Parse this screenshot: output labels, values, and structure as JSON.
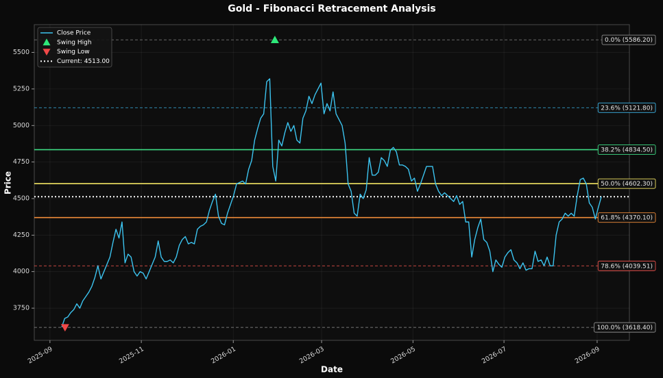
{
  "chart_data": {
    "type": "line",
    "title": "Gold - Fibonacci Retracement Analysis",
    "xlabel": "Date",
    "ylabel": "Price",
    "xlim": [
      -9.1,
      188.3
    ],
    "xticks": [
      {
        "value": -3.9,
        "label": "2025-09"
      },
      {
        "value": 26.4,
        "label": "2025-11"
      },
      {
        "value": 56.9,
        "label": "2026-01"
      },
      {
        "value": 86.2,
        "label": "2026-03"
      },
      {
        "value": 116.5,
        "label": "2026-05"
      },
      {
        "value": 146.7,
        "label": "2026-07"
      },
      {
        "value": 177.6,
        "label": "2026-09"
      }
    ],
    "ylim": [
      3530,
      5690
    ],
    "yticks": [
      3750,
      4000,
      4250,
      4500,
      4750,
      5000,
      5250,
      5500
    ],
    "grid": true,
    "legend": "upper left",
    "series": [
      {
        "name": "Close Price",
        "color": "#3cc4f0",
        "values": [
          3620,
          3680,
          3690,
          3720,
          3740,
          3780,
          3750,
          3800,
          3830,
          3860,
          3900,
          3960,
          4040,
          3950,
          4000,
          4050,
          4100,
          4200,
          4290,
          4230,
          4340,
          4060,
          4120,
          4100,
          4000,
          3970,
          4000,
          3990,
          3950,
          4000,
          4050,
          4100,
          4210,
          4100,
          4070,
          4070,
          4080,
          4060,
          4100,
          4180,
          4220,
          4240,
          4190,
          4200,
          4190,
          4290,
          4310,
          4320,
          4340,
          4420,
          4480,
          4530,
          4380,
          4330,
          4320,
          4400,
          4460,
          4520,
          4600,
          4610,
          4620,
          4600,
          4700,
          4760,
          4900,
          4980,
          5050,
          5080,
          5300,
          5320,
          4720,
          4620,
          4900,
          4860,
          4950,
          5020,
          4960,
          5000,
          4900,
          4880,
          5050,
          5100,
          5200,
          5150,
          5210,
          5250,
          5290,
          5080,
          5150,
          5100,
          5230,
          5080,
          5040,
          5000,
          4880,
          4600,
          4550,
          4400,
          4380,
          4530,
          4500,
          4560,
          4780,
          4660,
          4660,
          4680,
          4780,
          4760,
          4720,
          4830,
          4850,
          4820,
          4730,
          4730,
          4720,
          4700,
          4620,
          4640,
          4550,
          4600,
          4660,
          4720,
          4720,
          4720,
          4600,
          4550,
          4520,
          4540,
          4520,
          4500,
          4480,
          4520,
          4460,
          4480,
          4340,
          4340,
          4100,
          4220,
          4300,
          4360,
          4220,
          4200,
          4140,
          4000,
          4080,
          4050,
          4030,
          4100,
          4130,
          4150,
          4080,
          4060,
          4020,
          4060,
          4010,
          4020,
          4020,
          4140,
          4070,
          4080,
          4040,
          4100,
          4040,
          4040,
          4250,
          4340,
          4360,
          4400,
          4380,
          4400,
          4380,
          4520,
          4630,
          4640,
          4600,
          4470,
          4440,
          4360,
          4440,
          4513
        ]
      }
    ],
    "markers": [
      {
        "name": "Swing High",
        "shape": "triangle-up",
        "color": "#2ee87a",
        "x": 70.7,
        "value": 5586.2
      },
      {
        "name": "Swing Low",
        "shape": "triangle-down",
        "color": "#f04848",
        "x": 1.1,
        "value": 3618.4
      }
    ],
    "current": {
      "label": "Current: 4513.00",
      "value": 4513,
      "color": "#ffffff"
    },
    "levels": [
      {
        "label": "0.0% (5586.20)",
        "value": 5586.2,
        "color": "#8a8a8a",
        "style": "dashed"
      },
      {
        "label": "23.6% (5121.80)",
        "value": 5121.8,
        "color": "#3cb4e6",
        "style": "dashed"
      },
      {
        "label": "38.2% (4834.50)",
        "value": 4834.5,
        "color": "#3ddc84",
        "style": "solid"
      },
      {
        "label": "50.0% (4602.30)",
        "value": 4602.3,
        "color": "#f2e463",
        "style": "solid"
      },
      {
        "label": "61.8% (4370.10)",
        "value": 4370.1,
        "color": "#f08c3a",
        "style": "solid"
      },
      {
        "label": "78.6% (4039.51)",
        "value": 4039.51,
        "color": "#e8504a",
        "style": "dashed"
      },
      {
        "label": "100.0% (3618.40)",
        "value": 3618.4,
        "color": "#8a8a8a",
        "style": "dashed"
      }
    ]
  }
}
